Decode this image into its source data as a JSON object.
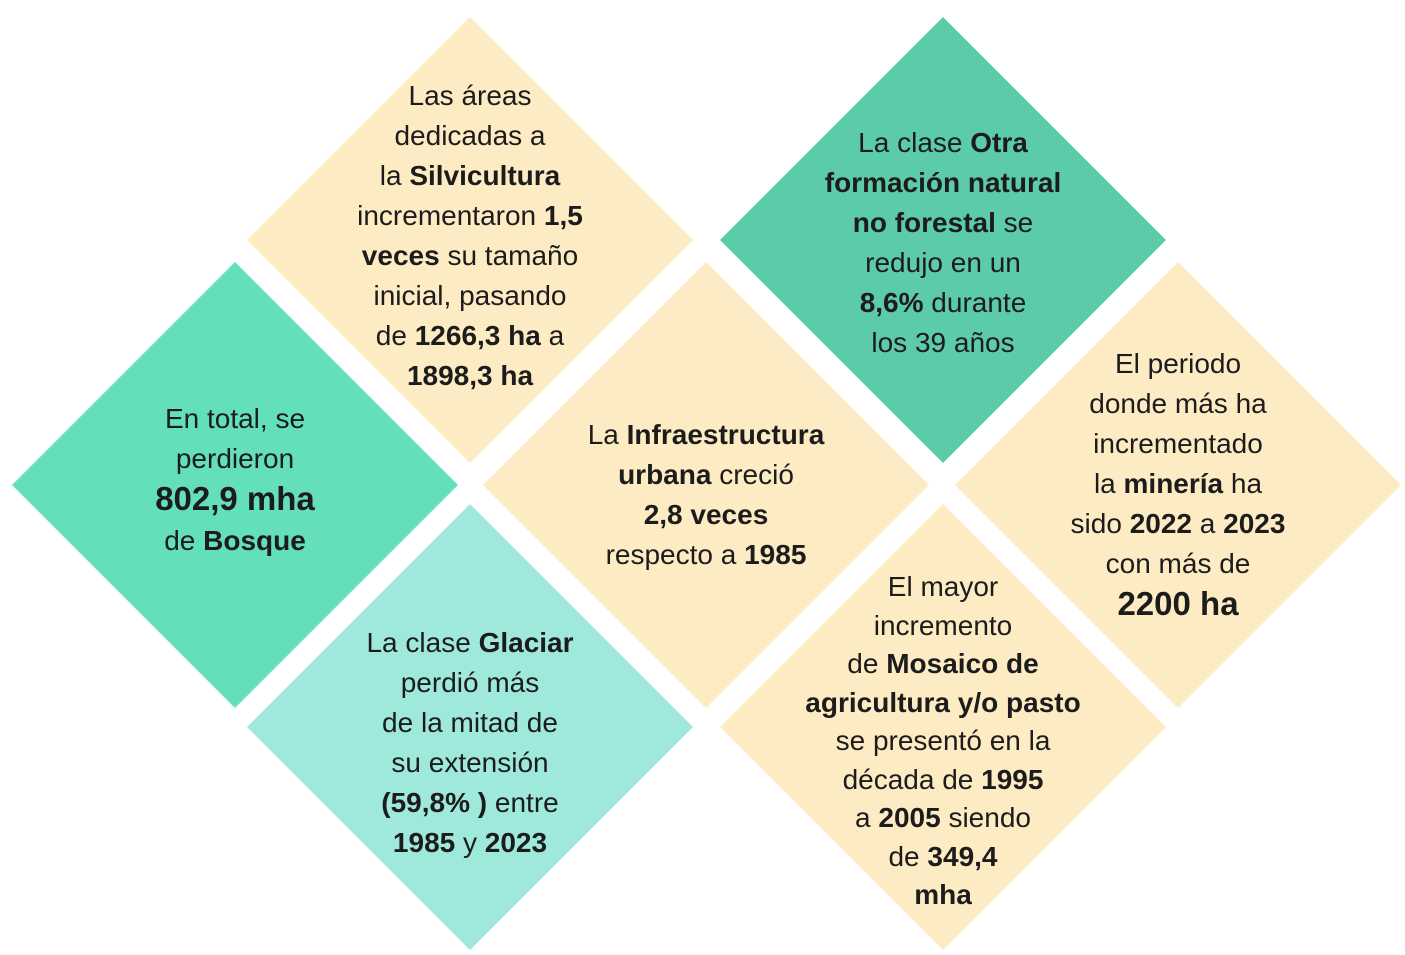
{
  "tiles": [
    {
      "color": "#fdebc4",
      "lines": [
        [
          {
            "text": "Las áreas"
          }
        ],
        [
          {
            "text": "dedicadas a"
          }
        ],
        [
          {
            "text": "la "
          },
          {
            "text": "Silvicultura",
            "bold": true
          }
        ],
        [
          {
            "text": "incrementaron "
          },
          {
            "text": "1,5",
            "bold": true
          }
        ],
        [
          {
            "text": "veces",
            "bold": true
          },
          {
            "text": " su tamaño"
          }
        ],
        [
          {
            "text": "inicial, pasando"
          }
        ],
        [
          {
            "text": "de "
          },
          {
            "text": "1266,3 ha",
            "bold": true
          },
          {
            "text": " a"
          }
        ],
        [
          {
            "text": "1898,3 ha",
            "bold": true
          }
        ]
      ]
    },
    {
      "color": "#63dfbc",
      "lines": [
        [
          {
            "text": "En total, se"
          }
        ],
        [
          {
            "text": "perdieron"
          }
        ],
        [
          {
            "text": "802,9 mha",
            "bold": true,
            "big": true
          }
        ],
        [
          {
            "text": "de "
          },
          {
            "text": "Bosque",
            "bold": true
          }
        ]
      ]
    },
    {
      "color": "#9ee8dc",
      "lines": [
        [
          {
            "text": "La clase "
          },
          {
            "text": "Glaciar",
            "bold": true
          }
        ],
        [
          {
            "text": "perdió más"
          }
        ],
        [
          {
            "text": "de la mitad de"
          }
        ],
        [
          {
            "text": "su extensión"
          }
        ],
        [
          {
            "text": "(59,8% )",
            "bold": true
          },
          {
            "text": " entre"
          }
        ],
        [
          {
            "text": "1985",
            "bold": true
          },
          {
            "text": " y "
          },
          {
            "text": "2023",
            "bold": true
          }
        ]
      ]
    },
    {
      "color": "#fdebc4",
      "lines": [
        [
          {
            "text": "La "
          },
          {
            "text": "Infraestructura",
            "bold": true
          }
        ],
        [
          {
            "text": "urbana",
            "bold": true
          },
          {
            "text": " creció"
          }
        ],
        [
          {
            "text": "2,8 veces",
            "bold": true
          }
        ],
        [
          {
            "text": "respecto a "
          },
          {
            "text": "1985",
            "bold": true
          }
        ]
      ]
    },
    {
      "color": "#5ccbaa",
      "lines": [
        [
          {
            "text": "La clase "
          },
          {
            "text": "Otra",
            "bold": true
          }
        ],
        [
          {
            "text": "formación natural",
            "bold": true
          }
        ],
        [
          {
            "text": "no forestal",
            "bold": true
          },
          {
            "text": " se"
          }
        ],
        [
          {
            "text": "redujo en un"
          }
        ],
        [
          {
            "text": "8,6%",
            "bold": true
          },
          {
            "text": " durante"
          }
        ],
        [
          {
            "text": "los 39 años"
          }
        ]
      ]
    },
    {
      "color": "#fdebc4",
      "lines": [
        [
          {
            "text": "El periodo"
          }
        ],
        [
          {
            "text": "donde más ha"
          }
        ],
        [
          {
            "text": "incrementado"
          }
        ],
        [
          {
            "text": "la "
          },
          {
            "text": "minería",
            "bold": true
          },
          {
            "text": " ha"
          }
        ],
        [
          {
            "text": "sido "
          },
          {
            "text": "2022",
            "bold": true
          },
          {
            "text": " a "
          },
          {
            "text": "2023",
            "bold": true
          }
        ],
        [
          {
            "text": "con más de"
          }
        ],
        [
          {
            "text": "2200 ha",
            "bold": true,
            "big": true
          }
        ]
      ]
    },
    {
      "color": "#fdebc4",
      "lines": [
        [
          {
            "text": "El mayor"
          }
        ],
        [
          {
            "text": "incremento"
          }
        ],
        [
          {
            "text": "de "
          },
          {
            "text": "Mosaico de",
            "bold": true
          }
        ],
        [
          {
            "text": "agricultura y/o pasto",
            "bold": true
          }
        ],
        [
          {
            "text": "se presentó en la"
          }
        ],
        [
          {
            "text": "década de "
          },
          {
            "text": "1995",
            "bold": true
          }
        ],
        [
          {
            "text": "a "
          },
          {
            "text": "2005",
            "bold": true
          },
          {
            "text": " siendo"
          }
        ],
        [
          {
            "text": "de "
          },
          {
            "text": "349,4",
            "bold": true
          }
        ],
        [
          {
            "text": "mha",
            "bold": true
          }
        ]
      ]
    }
  ]
}
